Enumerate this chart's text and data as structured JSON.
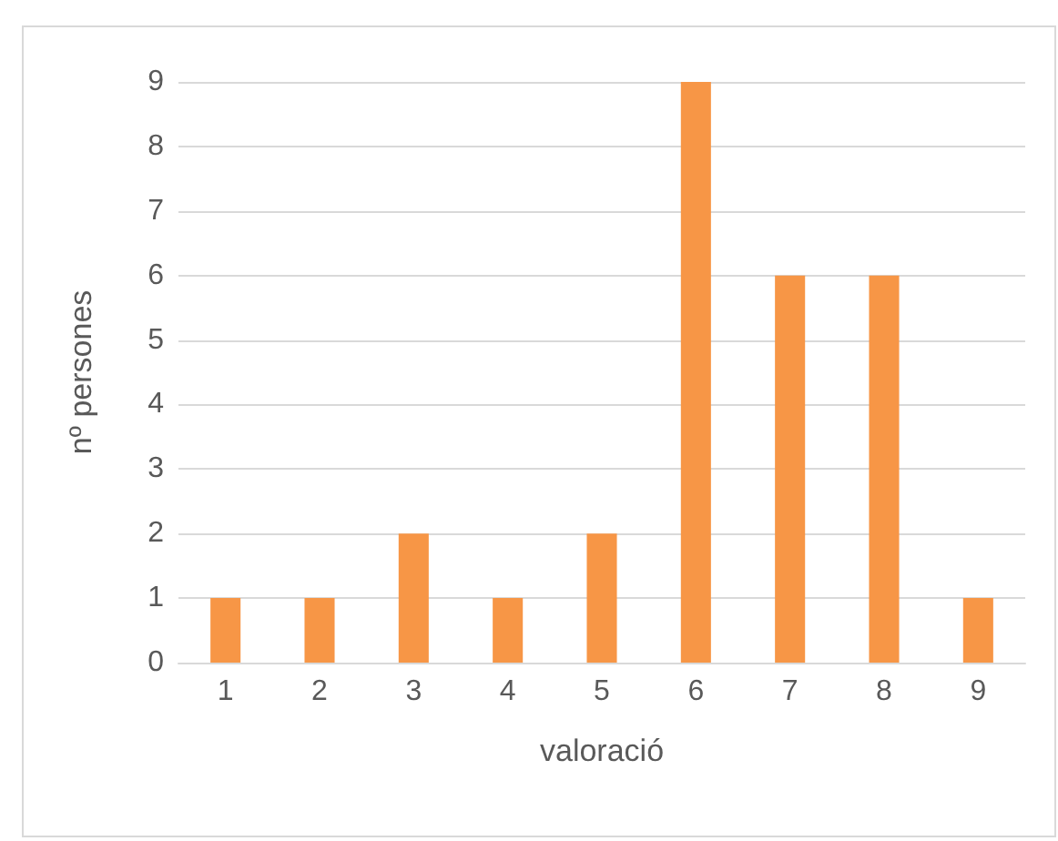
{
  "chart_data": {
    "type": "bar",
    "xlabel": "valoració",
    "ylabel": "nº persones",
    "categories": [
      "1",
      "2",
      "3",
      "4",
      "5",
      "6",
      "7",
      "8",
      "9"
    ],
    "values": [
      1,
      1,
      2,
      1,
      2,
      9,
      6,
      6,
      1
    ],
    "color": "#f79646",
    "ylim": [
      0,
      9
    ],
    "yticks": [
      0,
      1,
      2,
      3,
      4,
      5,
      6,
      7,
      8,
      9
    ],
    "grid": "y"
  }
}
